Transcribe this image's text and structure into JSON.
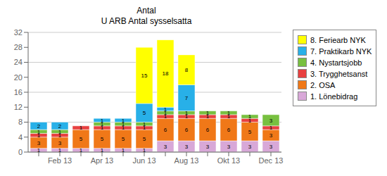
{
  "chart_data": {
    "type": "bar",
    "title": "Antal",
    "subtitle": "U ARB Antal sysselsatta",
    "categories": [
      null,
      "Feb 13",
      null,
      "Apr 13",
      null,
      "Jun 13",
      null,
      "Aug 13",
      null,
      "Okt 13",
      null,
      "Dec 13"
    ],
    "series": [
      {
        "name": "1. Lönebidrag",
        "color": "#D8A8D8",
        "values": [
          1,
          1,
          1,
          1,
          1,
          1,
          3,
          3,
          3,
          3,
          3,
          3
        ]
      },
      {
        "name": "2. OSA",
        "color": "#F07818",
        "values": [
          3,
          3,
          5,
          5,
          5,
          5,
          6,
          6,
          6,
          6,
          5,
          3
        ]
      },
      {
        "name": "3. Trygghetsanst",
        "color": "#E84040",
        "values": [
          1,
          1,
          1,
          1,
          1,
          1,
          1,
          1,
          1,
          1,
          1,
          1
        ]
      },
      {
        "name": "4. Nystartsjobb",
        "color": "#78C040",
        "values": [
          1,
          1,
          0,
          1,
          1,
          1,
          1,
          1,
          1,
          1,
          1,
          3
        ]
      },
      {
        "name": "7. Praktikarb NYK",
        "color": "#28B0E8",
        "values": [
          2,
          2,
          0,
          1,
          1,
          5,
          1,
          7,
          0,
          0,
          0,
          0
        ]
      },
      {
        "name": "8. Feriearb NYK",
        "color": "#FFFF00",
        "values": [
          0,
          0,
          0,
          0,
          0,
          15,
          18,
          8,
          0,
          0,
          0,
          0
        ]
      }
    ],
    "stacked": true,
    "data_labels": true,
    "ylim": [
      0,
      32
    ],
    "yticks": [
      0,
      4,
      8,
      12,
      16,
      20,
      24,
      28,
      32
    ],
    "grid": true,
    "legend": "right"
  }
}
